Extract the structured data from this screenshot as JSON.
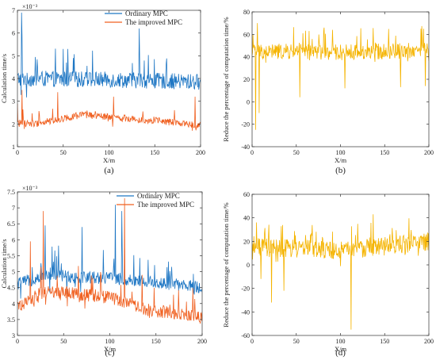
{
  "chart_data": [
    {
      "id": "a",
      "type": "line",
      "panel_label": "(a)",
      "xlabel": "X/m",
      "ylabel": "Calculation time/s",
      "y_multiplier_label": "×10⁻³",
      "xlim": [
        0,
        200
      ],
      "ylim": [
        1,
        7
      ],
      "xticks": [
        0,
        50,
        100,
        150,
        200
      ],
      "yticks": [
        1,
        2,
        3,
        4,
        5,
        6,
        7
      ],
      "grid": false,
      "legend_position": "top-center",
      "series": [
        {
          "name": "Ordinary MPC",
          "color": "#1f77c4",
          "mean": 4.0,
          "spread": 0.35,
          "spike_prob": 0.09,
          "spike_max": 1.4,
          "base_points": [
            [
              0,
              4.0
            ],
            [
              100,
              3.95
            ],
            [
              200,
              3.85
            ]
          ],
          "peaks": [
            [
              4.4,
              6.9
            ],
            [
              5,
              5.9
            ],
            [
              133,
              6.2
            ]
          ]
        },
        {
          "name": "The improved MPC",
          "color": "#f06020",
          "mean": 2.2,
          "spread": 0.15,
          "spike_prob": 0.05,
          "spike_max": 0.8,
          "base_points": [
            [
              0,
              2.1
            ],
            [
              20,
              2.0
            ],
            [
              70,
              2.4
            ],
            [
              100,
              2.3
            ],
            [
              150,
              2.15
            ],
            [
              200,
              1.95
            ]
          ],
          "peaks": [
            [
              5,
              3.5
            ],
            [
              44,
              3.4
            ],
            [
              105,
              3.2
            ],
            [
              194,
              3.2
            ]
          ]
        }
      ]
    },
    {
      "id": "b",
      "type": "line",
      "panel_label": "(b)",
      "xlabel": "X/m",
      "ylabel": "Reduce the percentage of computation time/%",
      "xlim": [
        0,
        200
      ],
      "ylim": [
        -40,
        80
      ],
      "xticks": [
        0,
        50,
        100,
        150,
        200
      ],
      "yticks": [
        -40,
        -20,
        0,
        20,
        40,
        60,
        80
      ],
      "grid": false,
      "series": [
        {
          "name": "",
          "color": "#f5b400",
          "mean": 45,
          "spread": 7,
          "spike_prob": 0.1,
          "spike_max": 22,
          "base_points": [
            [
              0,
              45
            ],
            [
              100,
              44
            ],
            [
              200,
              46
            ]
          ],
          "peaks": [
            [
              4,
              -25
            ],
            [
              6,
              70
            ],
            [
              8,
              -10
            ],
            [
              54,
              4
            ],
            [
              105,
              12
            ],
            [
              168,
              13
            ],
            [
              196,
              14
            ]
          ]
        }
      ]
    },
    {
      "id": "c",
      "type": "line",
      "panel_label": "(c)",
      "xlabel": "X/m",
      "ylabel": "Calculation time/s",
      "y_multiplier_label": "×10⁻³",
      "xlim": [
        0,
        200
      ],
      "ylim": [
        3,
        7.5
      ],
      "xticks": [
        0,
        50,
        100,
        150,
        200
      ],
      "yticks": [
        3,
        3.5,
        4,
        4.5,
        5,
        5.5,
        6,
        6.5,
        7,
        7.5
      ],
      "grid": false,
      "legend_position": "top-right",
      "series": [
        {
          "name": "Ordinary MPC",
          "color": "#1f77c4",
          "mean": 4.7,
          "spread": 0.2,
          "spike_prob": 0.1,
          "spike_max": 1.0,
          "base_points": [
            [
              0,
              4.6
            ],
            [
              30,
              4.9
            ],
            [
              100,
              4.8
            ],
            [
              200,
              4.5
            ]
          ],
          "peaks": [
            [
              30,
              6.45
            ],
            [
              70,
              6.4
            ],
            [
              106,
              7.1
            ],
            [
              113,
              6.9
            ]
          ]
        },
        {
          "name": "The improved MPC",
          "color": "#f06020",
          "mean": 4.1,
          "spread": 0.2,
          "spike_prob": 0.07,
          "spike_max": 0.9,
          "base_points": [
            [
              0,
              3.9
            ],
            [
              30,
              4.4
            ],
            [
              100,
              4.2
            ],
            [
              140,
              3.8
            ],
            [
              170,
              3.7
            ],
            [
              200,
              3.55
            ]
          ],
          "peaks": [
            [
              14,
              5.95
            ],
            [
              28,
              6.9
            ],
            [
              116,
              7.3
            ],
            [
              135,
              4.9
            ]
          ]
        }
      ]
    },
    {
      "id": "d",
      "type": "line",
      "panel_label": "(d)",
      "xlabel": "X/m",
      "ylabel": "Reduce the percentage of computation time/%",
      "xlim": [
        0,
        200
      ],
      "ylim": [
        -60,
        60
      ],
      "xticks": [
        0,
        50,
        100,
        150,
        200
      ],
      "yticks": [
        -60,
        -40,
        -20,
        0,
        20,
        40,
        60
      ],
      "grid": false,
      "series": [
        {
          "name": "",
          "color": "#f5b400",
          "mean": 18,
          "spread": 8,
          "spike_prob": 0.12,
          "spike_max": 22,
          "base_points": [
            [
              0,
              15
            ],
            [
              100,
              12
            ],
            [
              200,
              20
            ]
          ],
          "peaks": [
            [
              22,
              -32
            ],
            [
              36,
              -22
            ],
            [
              112,
              -55
            ],
            [
              137,
              43
            ],
            [
              10,
              -12
            ]
          ]
        }
      ]
    }
  ]
}
